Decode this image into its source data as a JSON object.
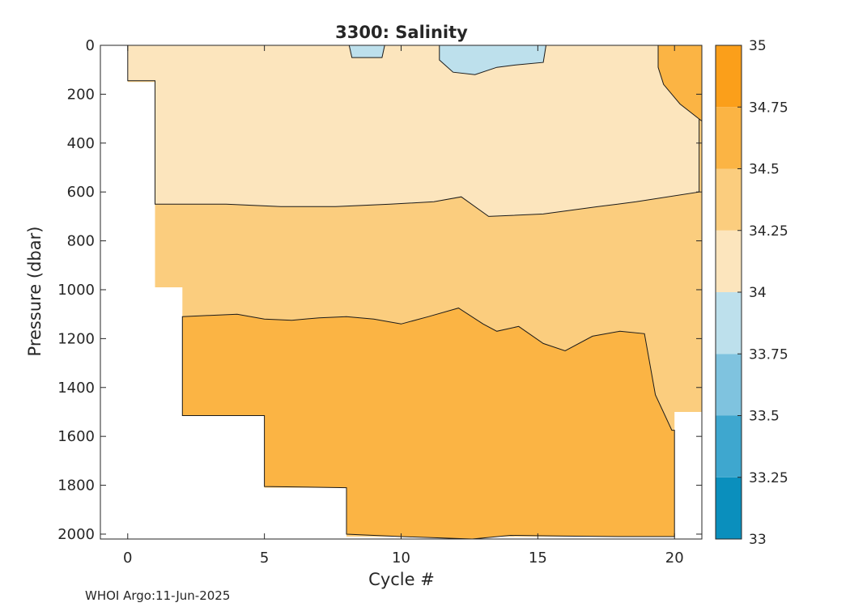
{
  "chart_data": {
    "type": "contour",
    "title": "3300:  Salinity",
    "xlabel": "Cycle #",
    "ylabel": "Pressure (dbar)",
    "xlim": [
      -1,
      21
    ],
    "ylim": [
      2020,
      0
    ],
    "y_reversed": true,
    "xticks": [
      0,
      5,
      10,
      15,
      20
    ],
    "yticks": [
      0,
      200,
      400,
      600,
      800,
      1000,
      1200,
      1400,
      1600,
      1800,
      2000
    ],
    "colorbar": {
      "min": 33,
      "max": 35,
      "ticks": [
        33,
        33.25,
        33.5,
        33.75,
        34,
        34.25,
        34.5,
        34.75,
        35
      ],
      "tick_labels": [
        "33",
        "33.25",
        "33.5",
        "33.75",
        "34",
        "34.25",
        "34.5",
        "34.75",
        "35"
      ],
      "colors": [
        "#0a8fbd",
        "#3ea7cf",
        "#7fc3df",
        "#bde0ec",
        "#fce5bd",
        "#fbcd7e",
        "#fbb444",
        "#fb9f1a"
      ]
    },
    "regions": [
      {
        "name": "34.0-34.25",
        "color": "#fce5bd",
        "points": [
          [
            0,
            0
          ],
          [
            20.9,
            0
          ],
          [
            20.9,
            600
          ],
          [
            18.6,
            640
          ],
          [
            17.2,
            660
          ],
          [
            15.2,
            690
          ],
          [
            13.2,
            700
          ],
          [
            12.2,
            620
          ],
          [
            11.2,
            640
          ],
          [
            9.6,
            650
          ],
          [
            7.6,
            660
          ],
          [
            5.6,
            660
          ],
          [
            3.6,
            650
          ],
          [
            1,
            650
          ],
          [
            1,
            145
          ],
          [
            0,
            145
          ]
        ]
      },
      {
        "name": "33.75-34.0 a",
        "color": "#bde0ec",
        "points": [
          [
            8.1,
            0
          ],
          [
            9.4,
            0
          ],
          [
            9.3,
            50
          ],
          [
            8.2,
            50
          ]
        ]
      },
      {
        "name": "33.75-34.0 b",
        "color": "#bde0ec",
        "points": [
          [
            11.4,
            0
          ],
          [
            15.3,
            0
          ],
          [
            15.2,
            70
          ],
          [
            14.2,
            80
          ],
          [
            13.5,
            90
          ],
          [
            12.7,
            120
          ],
          [
            11.9,
            110
          ],
          [
            11.4,
            60
          ]
        ]
      },
      {
        "name": "34.5-34.75 top-right",
        "color": "#fbb444",
        "points": [
          [
            19.4,
            0
          ],
          [
            21,
            0
          ],
          [
            21,
            310
          ],
          [
            20.2,
            240
          ],
          [
            19.6,
            160
          ],
          [
            19.4,
            90
          ]
        ]
      },
      {
        "name": "34.5-34.75 deep",
        "color": "#fbb444",
        "points": [
          [
            2,
            1110
          ],
          [
            3,
            1105
          ],
          [
            4,
            1100
          ],
          [
            5,
            1120
          ],
          [
            6,
            1125
          ],
          [
            7,
            1115
          ],
          [
            8,
            1110
          ],
          [
            9,
            1120
          ],
          [
            10,
            1140
          ],
          [
            11,
            1110
          ],
          [
            12.1,
            1075
          ],
          [
            13,
            1140
          ],
          [
            13.5,
            1170
          ],
          [
            14.3,
            1150
          ],
          [
            15.2,
            1220
          ],
          [
            16,
            1250
          ],
          [
            17,
            1190
          ],
          [
            18,
            1170
          ],
          [
            18.9,
            1180
          ],
          [
            19.3,
            1430
          ],
          [
            19.9,
            1575
          ],
          [
            20,
            1575
          ],
          [
            20,
            2010
          ],
          [
            18,
            2010
          ],
          [
            16,
            2008
          ],
          [
            14,
            2005
          ],
          [
            12.6,
            2020
          ],
          [
            10,
            2010
          ],
          [
            8,
            2000
          ],
          [
            8,
            1810
          ],
          [
            5,
            1805
          ],
          [
            5,
            1515
          ],
          [
            2,
            1515
          ]
        ]
      }
    ],
    "coverage": {
      "name": "sampled area",
      "points": [
        [
          0,
          0
        ],
        [
          21,
          0
        ],
        [
          21,
          1500
        ],
        [
          20,
          1500
        ],
        [
          20,
          2010
        ],
        [
          8,
          2010
        ],
        [
          8,
          1810
        ],
        [
          5,
          1810
        ],
        [
          5,
          1515
        ],
        [
          2,
          1515
        ],
        [
          2,
          1110
        ],
        [
          2,
          990
        ],
        [
          1,
          990
        ],
        [
          1,
          150
        ],
        [
          0,
          150
        ]
      ]
    }
  },
  "credit": "WHOI Argo:11-Jun-2025"
}
